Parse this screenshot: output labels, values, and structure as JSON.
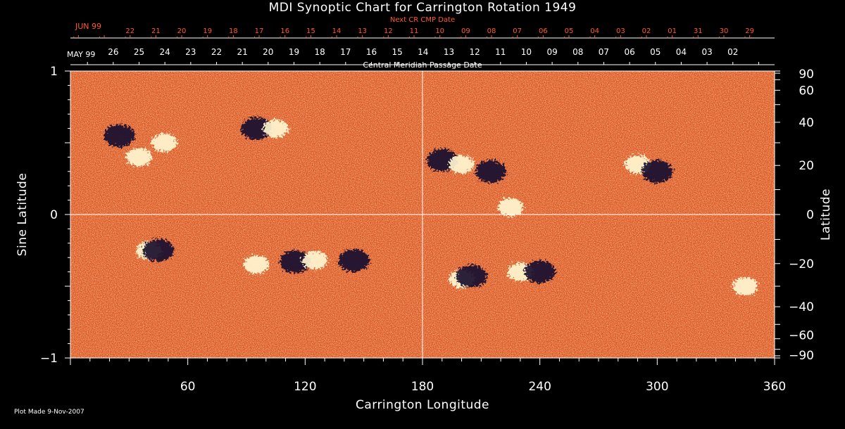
{
  "chart_data": {
    "type": "heatmap",
    "title": "MDI Synoptic Chart for Carrington Rotation 1949",
    "xlabel": "Carrington Longitude",
    "ylabel_left": "Sine Latitude",
    "ylabel_right": "Latitude",
    "xlim": [
      0,
      360
    ],
    "ylim": [
      -1,
      1
    ],
    "x_ticks": [
      60,
      120,
      180,
      240,
      300,
      360
    ],
    "y_ticks_left": [
      {
        "value": 1,
        "label": "1"
      },
      {
        "value": 0,
        "label": "0"
      },
      {
        "value": -1,
        "label": "−1"
      }
    ],
    "y_ticks_right": [
      {
        "deg": 90,
        "label": "90"
      },
      {
        "deg": 60,
        "label": "60"
      },
      {
        "deg": 40,
        "label": "40"
      },
      {
        "deg": 20,
        "label": "20"
      },
      {
        "deg": 0,
        "label": "0"
      },
      {
        "deg": -20,
        "label": "−20"
      },
      {
        "deg": -40,
        "label": "−40"
      },
      {
        "deg": -60,
        "label": "−60"
      },
      {
        "deg": -90,
        "label": "−90"
      }
    ],
    "grid_lines": {
      "longitude": 180,
      "sine_latitude": 0
    },
    "central_meridian_passage": {
      "axis_title": "Central Meridian Passage Date",
      "month_label": "MAY 99",
      "day_labels": [
        "26",
        "25",
        "24",
        "23",
        "22",
        "21",
        "20",
        "19",
        "18",
        "17",
        "16",
        "15",
        "14",
        "13",
        "12",
        "11",
        "10",
        "09",
        "08",
        "07",
        "06",
        "05",
        "04",
        "03",
        "02"
      ]
    },
    "next_cr_cmp": {
      "axis_title": "Next CR CMP Date",
      "month_label": "JUN 99",
      "day_labels": [
        "22",
        "21",
        "20",
        "19",
        "18",
        "17",
        "16",
        "15",
        "14",
        "13",
        "12",
        "11",
        "10",
        "09",
        "08",
        "07",
        "06",
        "05",
        "04",
        "03",
        "02",
        "01",
        "31",
        "30",
        "29"
      ]
    },
    "active_regions": [
      {
        "lon": 25,
        "sinlat": 0.55,
        "polarity": "negative"
      },
      {
        "lon": 35,
        "sinlat": 0.4,
        "polarity": "positive"
      },
      {
        "lon": 48,
        "sinlat": 0.5,
        "polarity": "positive"
      },
      {
        "lon": 95,
        "sinlat": 0.6,
        "polarity": "negative"
      },
      {
        "lon": 105,
        "sinlat": 0.6,
        "polarity": "positive"
      },
      {
        "lon": 190,
        "sinlat": 0.38,
        "polarity": "negative"
      },
      {
        "lon": 200,
        "sinlat": 0.35,
        "polarity": "positive"
      },
      {
        "lon": 215,
        "sinlat": 0.3,
        "polarity": "negative"
      },
      {
        "lon": 225,
        "sinlat": 0.05,
        "polarity": "positive"
      },
      {
        "lon": 290,
        "sinlat": 0.35,
        "polarity": "positive"
      },
      {
        "lon": 300,
        "sinlat": 0.3,
        "polarity": "negative"
      },
      {
        "lon": 40,
        "sinlat": -0.25,
        "polarity": "positive"
      },
      {
        "lon": 45,
        "sinlat": -0.25,
        "polarity": "negative"
      },
      {
        "lon": 95,
        "sinlat": -0.35,
        "polarity": "positive"
      },
      {
        "lon": 115,
        "sinlat": -0.33,
        "polarity": "negative"
      },
      {
        "lon": 125,
        "sinlat": -0.32,
        "polarity": "positive"
      },
      {
        "lon": 145,
        "sinlat": -0.32,
        "polarity": "negative"
      },
      {
        "lon": 200,
        "sinlat": -0.45,
        "polarity": "positive"
      },
      {
        "lon": 205,
        "sinlat": -0.43,
        "polarity": "negative"
      },
      {
        "lon": 230,
        "sinlat": -0.4,
        "polarity": "positive"
      },
      {
        "lon": 240,
        "sinlat": -0.4,
        "polarity": "negative"
      },
      {
        "lon": 345,
        "sinlat": -0.5,
        "polarity": "positive"
      }
    ]
  },
  "footer": {
    "plot_made": "Plot Made  9-Nov-2007"
  },
  "colors": {
    "background": "#000000",
    "field_base": "#e0501a",
    "positive_polarity": "#fff6d0",
    "negative_polarity": "#1a1030",
    "next_cr_labels": "#ff5a2a",
    "axes": "#ffffff"
  }
}
